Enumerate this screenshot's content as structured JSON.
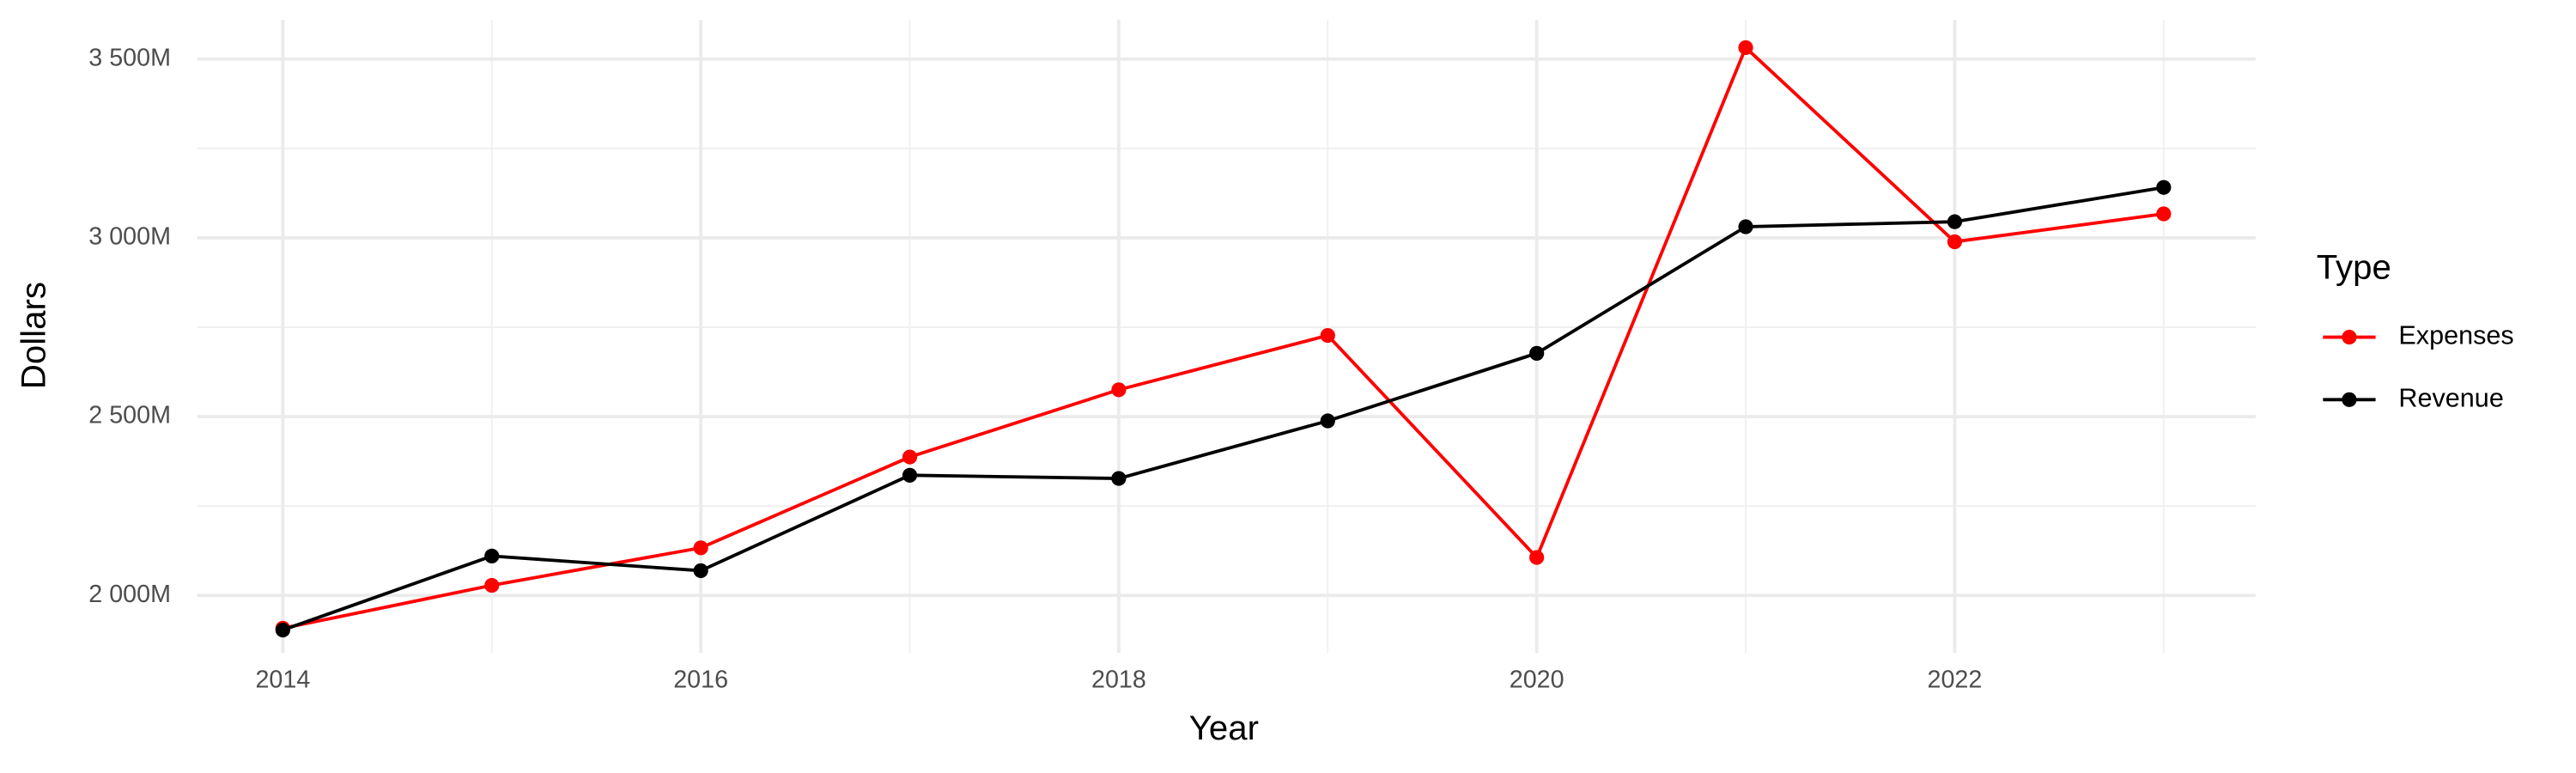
{
  "chart_data": {
    "type": "line",
    "x_label": "Year",
    "y_label": "Dollars",
    "legend_title": "Type",
    "x": [
      2014,
      2015,
      2016,
      2017,
      2018,
      2019,
      2020,
      2021,
      2022,
      2023
    ],
    "series": [
      {
        "name": "Expenses",
        "color": "#ff0000",
        "values": [
          1908,
          2028,
          2133,
          2387,
          2575,
          2727,
          2106,
          3532,
          2989,
          3067
        ]
      },
      {
        "name": "Revenue",
        "color": "#000000",
        "values": [
          1903,
          2110,
          2069,
          2336,
          2327,
          2488,
          2677,
          3031,
          3045,
          3141
        ]
      }
    ],
    "xlim": [
      2013.59,
      2023.44
    ],
    "ylim": [
      1839,
      3610
    ],
    "xticks": [
      2014,
      2016,
      2018,
      2020,
      2022
    ],
    "xminor": [
      2015,
      2017,
      2019,
      2021,
      2023
    ],
    "yticks": [
      {
        "value": 2000,
        "label": "2 000M"
      },
      {
        "value": 2500,
        "label": "2 500M"
      },
      {
        "value": 3000,
        "label": "3 000M"
      },
      {
        "value": 3500,
        "label": "3 500M"
      }
    ],
    "yminor": [
      2250,
      2750,
      3250
    ],
    "grid": true,
    "legend_position": "right"
  }
}
